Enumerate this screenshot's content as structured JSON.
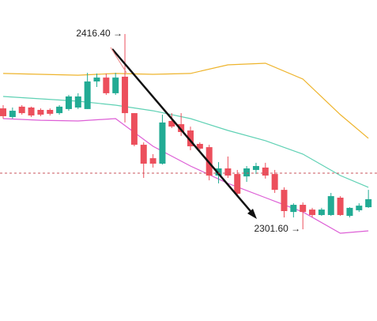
{
  "chart_data": {
    "type": "candlestick",
    "ylim": [
      2247.7,
      2436.4
    ],
    "up_color": "#22ab94",
    "down_color": "#ec4f5c",
    "candles": [
      [
        2372.7,
        2374.6,
        2366.7,
        2368.1
      ],
      [
        2367.6,
        2373.2,
        2366.7,
        2371.3
      ],
      [
        2373.7,
        2374.6,
        2369.0,
        2369.9
      ],
      [
        2373.2,
        2373.7,
        2367.6,
        2368.5
      ],
      [
        2371.8,
        2372.7,
        2368.1,
        2369.0
      ],
      [
        2371.8,
        2372.7,
        2368.5,
        2369.5
      ],
      [
        2369.9,
        2374.6,
        2369.0,
        2373.7
      ],
      [
        2372.3,
        2380.6,
        2371.3,
        2379.7
      ],
      [
        2373.2,
        2381.6,
        2372.3,
        2379.7
      ],
      [
        2372.3,
        2393.6,
        2372.3,
        2388.5
      ],
      [
        2388.5,
        2393.2,
        2385.3,
        2390.8
      ],
      [
        2390.8,
        2393.2,
        2380.6,
        2381.6
      ],
      [
        2381.6,
        2393.6,
        2380.6,
        2390.8
      ],
      [
        2391.3,
        2416.4,
        2364.4,
        2369.9
      ],
      [
        2369.9,
        2369.9,
        2350.4,
        2351.3
      ],
      [
        2351.3,
        2352.7,
        2331.8,
        2340.2
      ],
      [
        2343.4,
        2345.8,
        2337.9,
        2340.2
      ],
      [
        2340.2,
        2369.0,
        2339.7,
        2364.4
      ],
      [
        2365.3,
        2369.9,
        2361.1,
        2362.0
      ],
      [
        2363.4,
        2369.9,
        2356.5,
        2358.8
      ],
      [
        2359.7,
        2362.0,
        2348.1,
        2350.4
      ],
      [
        2351.8,
        2352.7,
        2348.1,
        2349.0
      ],
      [
        2349.9,
        2351.3,
        2330.4,
        2333.2
      ],
      [
        2333.2,
        2341.1,
        2328.6,
        2337.4
      ],
      [
        2337.4,
        2344.4,
        2331.8,
        2333.2
      ],
      [
        2334.1,
        2336.5,
        2321.1,
        2322.5
      ],
      [
        2332.7,
        2338.8,
        2329.5,
        2337.4
      ],
      [
        2336.5,
        2340.7,
        2334.1,
        2338.8
      ],
      [
        2337.9,
        2340.7,
        2331.4,
        2333.2
      ],
      [
        2334.1,
        2336.5,
        2323.0,
        2324.8
      ],
      [
        2324.8,
        2326.3,
        2308.6,
        2312.3
      ],
      [
        2311.8,
        2316.9,
        2308.6,
        2316.0
      ],
      [
        2316.0,
        2317.4,
        2301.6,
        2311.8
      ],
      [
        2313.2,
        2314.2,
        2308.6,
        2310.0
      ],
      [
        2310.0,
        2314.2,
        2309.5,
        2313.2
      ],
      [
        2310.0,
        2323.0,
        2309.5,
        2321.1
      ],
      [
        2320.2,
        2321.1,
        2309.5,
        2310.0
      ],
      [
        2309.5,
        2314.6,
        2308.6,
        2314.2
      ],
      [
        2312.8,
        2316.9,
        2311.8,
        2315.5
      ],
      [
        2314.6,
        2324.8,
        2314.2,
        2319.3
      ]
    ],
    "bands": {
      "x": [
        0,
        4,
        8,
        12,
        16,
        20,
        24,
        28,
        32,
        36,
        39
      ],
      "series": [
        {
          "color": "#eeb42c",
          "values": [
            2393.2,
            2392.7,
            2392.2,
            2393.2,
            2392.7,
            2393.2,
            2398.3,
            2399.2,
            2389.9,
            2369.0,
            2355.1
          ]
        },
        {
          "color": "#5fd1b4",
          "values": [
            2379.7,
            2378.3,
            2376.9,
            2374.6,
            2371.3,
            2366.7,
            2359.7,
            2353.7,
            2345.8,
            2333.2,
            2326.3
          ]
        },
        {
          "color": "#dd5fd6",
          "values": [
            2366.7,
            2365.7,
            2365.3,
            2366.7,
            2350.4,
            2338.8,
            2328.6,
            2320.2,
            2311.8,
            2299.3,
            2300.7
          ]
        }
      ]
    },
    "price_line": 2334.6,
    "annotations": [
      {
        "text": "2416.40 →"
      },
      {
        "text": "2301.60 →"
      }
    ]
  }
}
